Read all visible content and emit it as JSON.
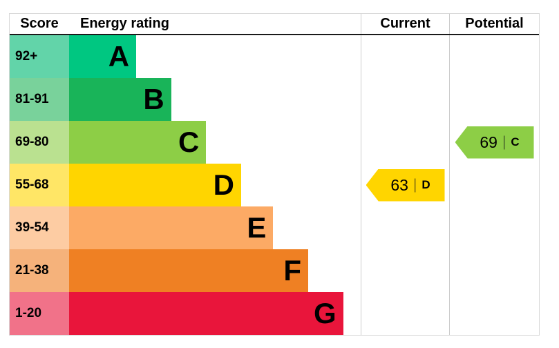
{
  "header": {
    "score": "Score",
    "rating": "Energy rating",
    "current": "Current",
    "potential": "Potential"
  },
  "chart_data": {
    "type": "bar",
    "title": "Energy rating",
    "categories": [
      "A",
      "B",
      "C",
      "D",
      "E",
      "F",
      "G"
    ],
    "score_ranges": [
      "92+",
      "81-91",
      "69-80",
      "55-68",
      "39-54",
      "21-38",
      "1-20"
    ],
    "bands": [
      {
        "letter": "A",
        "score": "92+",
        "color": "#00c781",
        "tint": "#62d4a9",
        "width_pct": 23
      },
      {
        "letter": "B",
        "score": "81-91",
        "color": "#19b459",
        "tint": "#79d29b",
        "width_pct": 35
      },
      {
        "letter": "C",
        "score": "69-80",
        "color": "#8dce46",
        "tint": "#bae190",
        "width_pct": 47
      },
      {
        "letter": "D",
        "score": "55-68",
        "color": "#ffd500",
        "tint": "#ffe666",
        "width_pct": 59
      },
      {
        "letter": "E",
        "score": "39-54",
        "color": "#fcaa65",
        "tint": "#fdcca3",
        "width_pct": 70
      },
      {
        "letter": "F",
        "score": "21-38",
        "color": "#ef8023",
        "tint": "#f5b27b",
        "width_pct": 82
      },
      {
        "letter": "G",
        "score": "1-20",
        "color": "#e9153b",
        "tint": "#f17289",
        "width_pct": 94
      }
    ],
    "current": {
      "score": 63,
      "rating": "D",
      "row": 3,
      "color": "#ffd500"
    },
    "potential": {
      "score": 69,
      "rating": "C",
      "row": 2,
      "color": "#8dce46"
    }
  }
}
